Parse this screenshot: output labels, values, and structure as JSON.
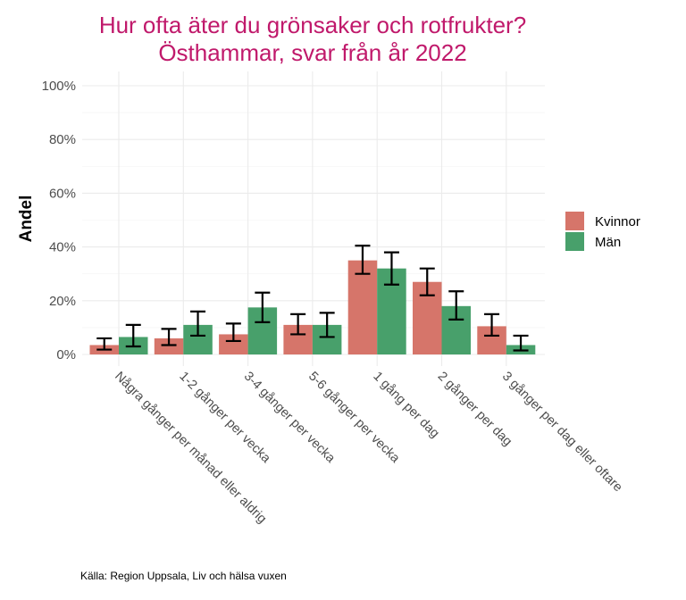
{
  "chart_data": {
    "type": "bar",
    "title": "Hur ofta äter du grönsaker och rotfrukter?",
    "subtitle": "Östhammar, svar från år 2022",
    "xlabel": "",
    "ylabel": "Andel",
    "ylim": [
      0,
      100
    ],
    "yticks": [
      "0%",
      "20%",
      "40%",
      "60%",
      "80%",
      "100%"
    ],
    "ytick_values": [
      0,
      20,
      40,
      60,
      80,
      100
    ],
    "categories": [
      "Några gånger per månad eller aldrig",
      "1-2 gånger per vecka",
      "3-4 gånger per vecka",
      "5-6 gånger per vecka",
      "1 gång per dag",
      "2 gånger per dag",
      "3 gånger per dag eller oftare"
    ],
    "series": [
      {
        "name": "Kvinnor",
        "color": "#d6756a",
        "values": [
          3.5,
          6,
          7.5,
          11,
          35,
          27,
          10.5
        ],
        "error_low": [
          1.8,
          3.5,
          5,
          7.5,
          30,
          22,
          7
        ],
        "error_high": [
          6,
          9.5,
          11.5,
          15,
          40.5,
          32,
          15
        ]
      },
      {
        "name": "Män",
        "color": "#48a06b",
        "values": [
          6.5,
          11,
          17.5,
          11,
          32,
          18,
          3.5
        ],
        "error_low": [
          3,
          7,
          12,
          6.5,
          26,
          13,
          1.5
        ],
        "error_high": [
          11,
          16,
          23,
          15.5,
          38,
          23.5,
          7
        ]
      }
    ],
    "legend_position": "right",
    "grid": true,
    "caption": "Källa: Region Uppsala, Liv och hälsa vuxen"
  }
}
